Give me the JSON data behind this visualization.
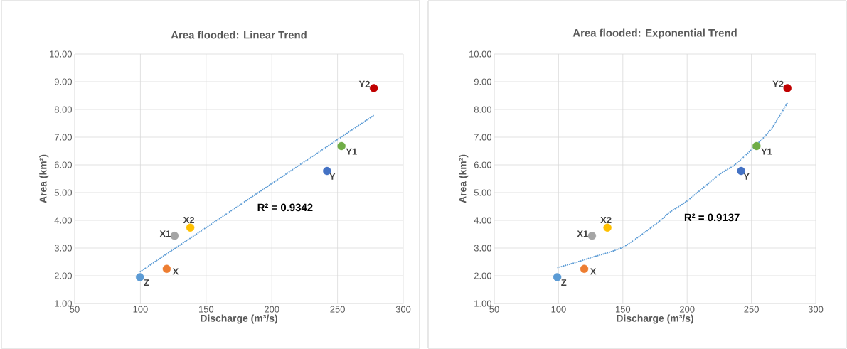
{
  "chart_data": [
    {
      "type": "scatter",
      "title": "Area flooded: Linear Trend",
      "xlabel": "Discharge (m³/s)",
      "ylabel": "Area (km²)",
      "xlim": [
        50,
        300
      ],
      "xticks": [
        50,
        100,
        150,
        200,
        250,
        300
      ],
      "ylim": [
        1,
        10
      ],
      "yticks": [
        {
          "value": 1,
          "label": "1.00"
        },
        {
          "value": 2,
          "label": "2.00"
        },
        {
          "value": 3,
          "label": "3.00"
        },
        {
          "value": 4,
          "label": "4.00"
        },
        {
          "value": 5,
          "label": "5.00"
        },
        {
          "value": 6,
          "label": "6.00"
        },
        {
          "value": 7,
          "label": "7.00"
        },
        {
          "value": 8,
          "label": "8.00"
        },
        {
          "value": 9,
          "label": "9.00"
        },
        {
          "value": 10,
          "label": "10.00"
        }
      ],
      "grid": true,
      "marker": "circle",
      "series": [
        {
          "name": "Z",
          "color": "#5b9bd5",
          "x": [
            99.6
          ],
          "values": [
            1.95
          ]
        },
        {
          "name": "X",
          "color": "#ed7d31",
          "x": [
            120
          ],
          "values": [
            2.25
          ]
        },
        {
          "name": "X1",
          "color": "#a5a5a5",
          "x": [
            126
          ],
          "values": [
            3.44
          ]
        },
        {
          "name": "X2",
          "color": "#ffc000",
          "x": [
            138
          ],
          "values": [
            3.74
          ]
        },
        {
          "name": "Y",
          "color": "#4472c4",
          "x": [
            242
          ],
          "values": [
            5.78
          ]
        },
        {
          "name": "Y1",
          "color": "#70ad47",
          "x": [
            253
          ],
          "values": [
            6.68
          ]
        },
        {
          "name": "Y2",
          "color": "#c00000",
          "x": [
            277.6
          ],
          "values": [
            8.77
          ]
        },
        {
          "type": "line",
          "color": "#5b9bd5",
          "line_style": "dotted",
          "marker": "none",
          "x": [
            99.6,
            277.6
          ],
          "values": [
            2.14,
            7.79
          ]
        }
      ],
      "annotations": [
        "R² = 0.9342"
      ]
    },
    {
      "type": "scatter",
      "title": "Area flooded: Exponential Trend",
      "xlabel": "Discharge (m³/s)",
      "ylabel": "Area (km²)",
      "xlim": [
        50,
        300
      ],
      "xticks": [
        50,
        100,
        150,
        200,
        250,
        300
      ],
      "ylim": [
        1,
        10
      ],
      "yticks": [
        {
          "value": 1,
          "label": "1.00"
        },
        {
          "value": 2,
          "label": "2.00"
        },
        {
          "value": 3,
          "label": "3.00"
        },
        {
          "value": 4,
          "label": "4.00"
        },
        {
          "value": 5,
          "label": "5.00"
        },
        {
          "value": 6,
          "label": "6.00"
        },
        {
          "value": 7,
          "label": "7.00"
        },
        {
          "value": 8,
          "label": "8.00"
        },
        {
          "value": 9,
          "label": "9.00"
        },
        {
          "value": 10,
          "label": "10.00"
        }
      ],
      "grid": true,
      "marker": "circle",
      "series": [
        {
          "name": "Z",
          "color": "#5b9bd5",
          "x": [
            99
          ],
          "values": [
            1.95
          ]
        },
        {
          "name": "X",
          "color": "#ed7d31",
          "x": [
            120
          ],
          "values": [
            2.25
          ]
        },
        {
          "name": "X1",
          "color": "#a5a5a5",
          "x": [
            126
          ],
          "values": [
            3.44
          ]
        },
        {
          "name": "X2",
          "color": "#ffc000",
          "x": [
            138
          ],
          "values": [
            3.74
          ]
        },
        {
          "name": "Y",
          "color": "#4472c4",
          "x": [
            242
          ],
          "values": [
            5.78
          ]
        },
        {
          "name": "Y1",
          "color": "#70ad47",
          "x": [
            254
          ],
          "values": [
            6.68
          ]
        },
        {
          "name": "Y2",
          "color": "#c00000",
          "x": [
            278
          ],
          "values": [
            8.77
          ]
        },
        {
          "type": "line",
          "color": "#5b9bd5",
          "line_style": "dotted",
          "marker": "none",
          "x": [
            99,
            112,
            125,
            150,
            175,
            187,
            200,
            225,
            237,
            250,
            265,
            278
          ],
          "values": [
            2.29,
            2.46,
            2.65,
            3.03,
            3.84,
            4.31,
            4.7,
            5.65,
            6.0,
            6.55,
            7.27,
            8.24
          ]
        }
      ],
      "annotations": [
        "R² = 0.9137"
      ]
    }
  ]
}
